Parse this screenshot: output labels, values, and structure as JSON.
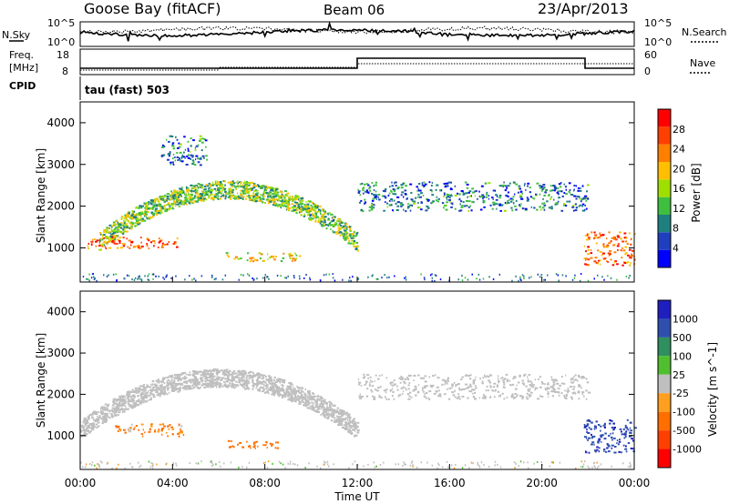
{
  "header": {
    "title_left": "Goose Bay (fitACF)",
    "title_center": "Beam 06",
    "title_right": "23/Apr/2013"
  },
  "noise_panel": {
    "left_label": "N.Sky",
    "right_label": "N.Search",
    "left_ticks": [
      "10^5",
      "10^0"
    ],
    "right_ticks": [
      "10^5",
      "10^0"
    ]
  },
  "freq_panel": {
    "left_label_1": "Freq.",
    "left_label_2": "[MHz]",
    "right_label": "Nave",
    "left_ticks": [
      "18",
      "8"
    ],
    "right_ticks": [
      "60",
      "0"
    ]
  },
  "cpid_panel": {
    "left_label": "CPID",
    "text": "tau (fast) 503"
  },
  "colors": {
    "power_scale": [
      "#0000ff",
      "#1f3fbf",
      "#1f7f7f",
      "#3fbf3f",
      "#9fdf00",
      "#ffbf00",
      "#ff7f00",
      "#ff3f00",
      "#ff0000"
    ],
    "velocity_scale": [
      "#1f1fbf",
      "#2f4faf",
      "#2f8f5f",
      "#4fbf2f",
      "#bfbfbf",
      "#ff9f1f",
      "#ff6f00",
      "#ff3f00",
      "#ff0000"
    ]
  },
  "chart_data": [
    {
      "type": "heatmap",
      "title": "",
      "quantity": "Power",
      "ylabel": "Slant Range [km]",
      "colorbar_label": "Power [dB]",
      "colorbar_ticks": [
        "28",
        "24",
        "20",
        "16",
        "12",
        "8",
        "4"
      ],
      "colorbar_range": [
        0,
        32
      ],
      "ylim": [
        180,
        4500
      ],
      "y_ticks": [
        "4000",
        "3000",
        "2000",
        "1000"
      ],
      "xlim_hours": [
        0,
        24
      ],
      "echo_regions": [
        {
          "name": "ionospheric band",
          "t_hours": [
            0.8,
            12.0
          ],
          "range_km": [
            900,
            2600
          ],
          "power_db": 14
        },
        {
          "name": "near-range band",
          "t_hours": [
            0.3,
            4.2
          ],
          "range_km": [
            1000,
            1300
          ],
          "power_db": 26
        },
        {
          "name": "low echoes",
          "t_hours": [
            6.3,
            9.5
          ],
          "range_km": [
            700,
            900
          ],
          "power_db": 18
        },
        {
          "name": "upper scatter",
          "t_hours": [
            3.5,
            5.5
          ],
          "range_km": [
            3000,
            3700
          ],
          "power_db": 8
        },
        {
          "name": "afternoon band",
          "t_hours": [
            12.0,
            22.0
          ],
          "range_km": [
            1900,
            2600
          ],
          "power_db": 8
        },
        {
          "name": "late near-range",
          "t_hours": [
            21.8,
            24.0
          ],
          "range_km": [
            600,
            1400
          ],
          "power_db": 25
        }
      ]
    },
    {
      "type": "heatmap",
      "title": "",
      "quantity": "Velocity",
      "ylabel": "Slant Range [km]",
      "xlabel": "Time UT",
      "colorbar_label": "Velocity [m s^-1]",
      "colorbar_ticks": [
        "1000",
        "500",
        "100",
        "25",
        "-25",
        "-100",
        "-500",
        "-1000"
      ],
      "ylim": [
        180,
        4500
      ],
      "y_ticks": [
        "4000",
        "3000",
        "2000",
        "1000"
      ],
      "x_ticks": [
        "00:00",
        "04:00",
        "08:00",
        "12:00",
        "16:00",
        "20:00",
        "00:00"
      ],
      "xlim_hours": [
        0,
        24
      ],
      "echo_regions": [
        {
          "name": "ionospheric band",
          "t_hours": [
            0.0,
            12.0
          ],
          "range_km": [
            600,
            2600
          ],
          "velocity_ms": 0
        },
        {
          "name": "near-range band",
          "t_hours": [
            1.5,
            4.5
          ],
          "range_km": [
            1000,
            1300
          ],
          "velocity_ms": -150
        },
        {
          "name": "low echoes",
          "t_hours": [
            6.3,
            8.6
          ],
          "range_km": [
            700,
            900
          ],
          "velocity_ms": -300
        },
        {
          "name": "afternoon band",
          "t_hours": [
            12.0,
            22.0
          ],
          "range_km": [
            1900,
            2500
          ],
          "velocity_ms": 0
        },
        {
          "name": "late near-range",
          "t_hours": [
            21.8,
            24.0
          ],
          "range_km": [
            600,
            1400
          ],
          "velocity_ms": 400
        }
      ]
    }
  ]
}
